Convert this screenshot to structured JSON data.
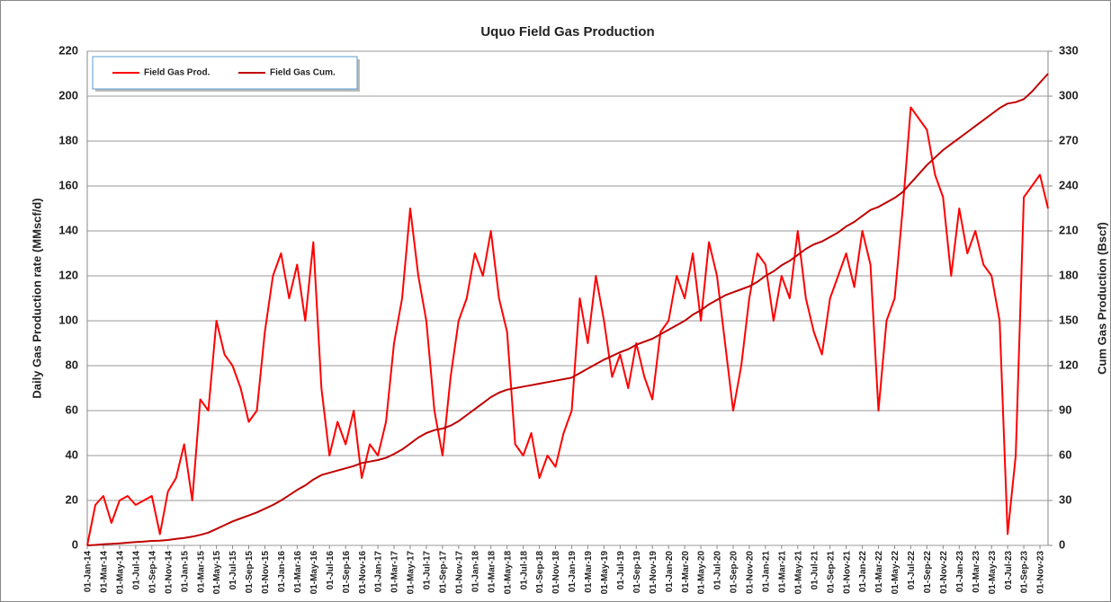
{
  "chart_data": {
    "type": "line",
    "title": "Uquo Field Gas Production",
    "ylabel": "Daily Gas Production rate (MMscf/d)",
    "y2label": "Cum Gas Production (Bscf)",
    "x": [
      "01-Jan-14",
      "01-Feb-14",
      "01-Mar-14",
      "01-Apr-14",
      "01-May-14",
      "01-Jun-14",
      "01-Jul-14",
      "01-Aug-14",
      "01-Sep-14",
      "01-Oct-14",
      "01-Nov-14",
      "01-Dec-14",
      "01-Jan-15",
      "01-Feb-15",
      "01-Mar-15",
      "01-Apr-15",
      "01-May-15",
      "01-Jun-15",
      "01-Jul-15",
      "01-Aug-15",
      "01-Sep-15",
      "01-Oct-15",
      "01-Nov-15",
      "01-Dec-15",
      "01-Jan-16",
      "01-Feb-16",
      "01-Mar-16",
      "01-Apr-16",
      "01-May-16",
      "01-Jun-16",
      "01-Jul-16",
      "01-Aug-16",
      "01-Sep-16",
      "01-Oct-16",
      "01-Nov-16",
      "01-Dec-16",
      "01-Jan-17",
      "01-Feb-17",
      "01-Mar-17",
      "01-Apr-17",
      "01-May-17",
      "01-Jun-17",
      "01-Jul-17",
      "01-Aug-17",
      "01-Sep-17",
      "01-Oct-17",
      "01-Nov-17",
      "01-Dec-17",
      "01-Jan-18",
      "01-Feb-18",
      "01-Mar-18",
      "01-Apr-18",
      "01-May-18",
      "01-Jun-18",
      "01-Jul-18",
      "01-Aug-18",
      "01-Sep-18",
      "01-Oct-18",
      "01-Nov-18",
      "01-Dec-18",
      "01-Jan-19",
      "01-Feb-19",
      "01-Mar-19",
      "01-Apr-19",
      "01-May-19",
      "01-Jun-19",
      "01-Jul-19",
      "01-Aug-19",
      "01-Sep-19",
      "01-Oct-19",
      "01-Nov-19",
      "01-Dec-19",
      "01-Jan-20",
      "01-Feb-20",
      "01-Mar-20",
      "01-Apr-20",
      "01-May-20",
      "01-Jun-20",
      "01-Jul-20",
      "01-Aug-20",
      "01-Sep-20",
      "01-Oct-20",
      "01-Nov-20",
      "01-Dec-20",
      "01-Jan-21",
      "01-Feb-21",
      "01-Mar-21",
      "01-Apr-21",
      "01-May-21",
      "01-Jun-21",
      "01-Jul-21",
      "01-Aug-21",
      "01-Sep-21",
      "01-Oct-21",
      "01-Nov-21",
      "01-Dec-21",
      "01-Jan-22",
      "01-Feb-22",
      "01-Mar-22",
      "01-Apr-22",
      "01-May-22",
      "01-Jun-22",
      "01-Jul-22",
      "01-Aug-22",
      "01-Sep-22",
      "01-Oct-22",
      "01-Nov-22",
      "01-Dec-22",
      "01-Jan-23",
      "01-Feb-23",
      "01-Mar-23",
      "01-Apr-23",
      "01-May-23",
      "01-Jun-23",
      "01-Jul-23",
      "01-Aug-23",
      "01-Sep-23",
      "01-Oct-23",
      "01-Nov-23",
      "01-Dec-23"
    ],
    "xticks": [
      "01-Jan-14",
      "01-Mar-14",
      "01-May-14",
      "01-Jul-14",
      "01-Sep-14",
      "01-Nov-14",
      "01-Jan-15",
      "01-Mar-15",
      "01-May-15",
      "01-Jul-15",
      "01-Sep-15",
      "01-Nov-15",
      "01-Jan-16",
      "01-Mar-16",
      "01-May-16",
      "01-Jul-16",
      "01-Sep-16",
      "01-Nov-16",
      "01-Jan-17",
      "01-Mar-17",
      "01-May-17",
      "01-Jul-17",
      "01-Sep-17",
      "01-Nov-17",
      "01-Jan-18",
      "01-Mar-18",
      "01-May-18",
      "01-Jul-18",
      "01-Sep-18",
      "01-Nov-18",
      "01-Jan-19",
      "01-Mar-19",
      "01-May-19",
      "01-Jul-19",
      "01-Sep-19",
      "01-Nov-19",
      "01-Jan-20",
      "01-Mar-20",
      "01-May-20",
      "01-Jul-20",
      "01-Sep-20",
      "01-Nov-20",
      "01-Jan-21",
      "01-Mar-21",
      "01-May-21",
      "01-Jul-21",
      "01-Sep-21",
      "01-Nov-21",
      "01-Jan-22",
      "01-Mar-22",
      "01-May-22",
      "01-Jul-22",
      "01-Sep-22",
      "01-Nov-22",
      "01-Jan-23",
      "01-Mar-23",
      "01-May-23",
      "01-Jul-23",
      "01-Sep-23",
      "01-Nov-23"
    ],
    "series": [
      {
        "name": "Field Gas Prod.",
        "color": "#ff0000",
        "axis": "y",
        "values": [
          0,
          18,
          22,
          10,
          20,
          22,
          18,
          20,
          22,
          5,
          24,
          30,
          45,
          20,
          65,
          60,
          100,
          85,
          80,
          70,
          55,
          60,
          95,
          120,
          130,
          110,
          125,
          100,
          135,
          70,
          40,
          55,
          45,
          60,
          30,
          45,
          40,
          55,
          90,
          110,
          150,
          120,
          100,
          60,
          40,
          75,
          100,
          110,
          130,
          120,
          140,
          110,
          95,
          45,
          40,
          50,
          30,
          40,
          35,
          50,
          60,
          110,
          90,
          120,
          100,
          75,
          85,
          70,
          90,
          75,
          65,
          95,
          100,
          120,
          110,
          130,
          100,
          135,
          120,
          90,
          60,
          80,
          110,
          130,
          125,
          100,
          120,
          110,
          140,
          110,
          95,
          85,
          110,
          120,
          130,
          115,
          140,
          125,
          60,
          100,
          110,
          150,
          195,
          190,
          185,
          165,
          155,
          120,
          150,
          130,
          140,
          125,
          120,
          100,
          5,
          40,
          155,
          160,
          165,
          150
        ]
      },
      {
        "name": "Field Gas Cum.",
        "color": "#c00000",
        "axis": "y2",
        "values": [
          0,
          0.3,
          0.8,
          1,
          1.4,
          1.8,
          2.2,
          2.6,
          3,
          3.2,
          3.6,
          4.3,
          5,
          5.8,
          7,
          8.5,
          11,
          13.5,
          16,
          18,
          20,
          22,
          24.5,
          27,
          30,
          33.5,
          37,
          40,
          44,
          47,
          48.5,
          50,
          51.5,
          53,
          55,
          56,
          57,
          58.5,
          61,
          64,
          68,
          72,
          75,
          77,
          78,
          80,
          83,
          87,
          91,
          95,
          99,
          102,
          104,
          105,
          106,
          107,
          108,
          109,
          110,
          111,
          112,
          115,
          118,
          121,
          124,
          126.5,
          129,
          131,
          134,
          136,
          138,
          141,
          144,
          147,
          150,
          154,
          157,
          161,
          164,
          167,
          169,
          171,
          173,
          176,
          180,
          183,
          187,
          190,
          194,
          198,
          201,
          203,
          206,
          209,
          213,
          216,
          220,
          224,
          226,
          229,
          232,
          236,
          242,
          248,
          254,
          259,
          264,
          268,
          272,
          276,
          280,
          284,
          288,
          292,
          295,
          296,
          298,
          303,
          309,
          315
        ]
      }
    ],
    "ylim": [
      0,
      220
    ],
    "yticks": [
      0,
      20,
      40,
      60,
      80,
      100,
      120,
      140,
      160,
      180,
      200,
      220
    ],
    "y2lim": [
      0,
      330
    ],
    "y2ticks": [
      0,
      30,
      60,
      90,
      120,
      150,
      180,
      210,
      240,
      270,
      300,
      330
    ],
    "grid": true
  }
}
